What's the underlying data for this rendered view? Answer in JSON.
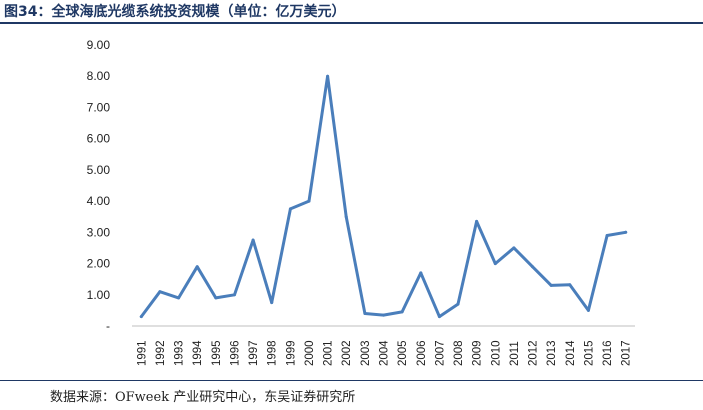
{
  "header": {
    "title": "图34：全球海底光缆系统投资规模（单位：亿万美元）"
  },
  "footer": {
    "source": "数据来源：OFweek 产业研究中心，东吴证券研究所"
  },
  "colors": {
    "line": "#4a7ebb",
    "rule": "#1f3864"
  },
  "chart_data": {
    "type": "line",
    "title": "",
    "xlabel": "",
    "ylabel": "",
    "categories": [
      "1991",
      "1992",
      "1993",
      "1994",
      "1995",
      "1996",
      "1997",
      "1998",
      "1999",
      "2000",
      "2001",
      "2002",
      "2003",
      "2004",
      "2005",
      "2006",
      "2007",
      "2008",
      "2009",
      "2010",
      "2011",
      "2012",
      "2013",
      "2014",
      "2015",
      "2016",
      "2017"
    ],
    "series": [
      {
        "values": [
          0.3,
          1.1,
          0.9,
          1.9,
          0.9,
          1.0,
          2.75,
          0.75,
          3.75,
          4.0,
          8.0,
          3.5,
          0.4,
          0.35,
          0.45,
          1.7,
          0.3,
          0.7,
          3.35,
          2.0,
          2.5,
          1.9,
          1.3,
          1.32,
          0.5,
          2.9,
          3.0
        ]
      }
    ],
    "ylim": [
      0,
      9
    ],
    "yticks": [
      "-",
      "1.00",
      "2.00",
      "3.00",
      "4.00",
      "5.00",
      "6.00",
      "7.00",
      "8.00",
      "9.00"
    ],
    "grid": false,
    "legend": "none"
  }
}
